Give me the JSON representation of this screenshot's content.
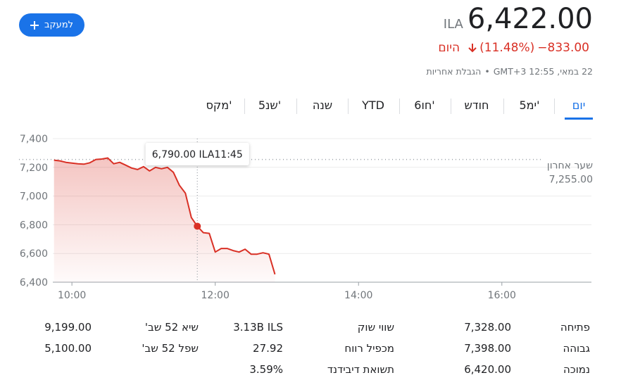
{
  "follow_button": "למעקב",
  "quote": {
    "currency": "ILA",
    "price": "6,422.00",
    "change": "−833.00",
    "change_pct": "(11.48%)",
    "period": "היום",
    "timestamp": "22 במאי, 12:55 GMT+3",
    "disclaimer": "הגבלת אחריות"
  },
  "tabs": [
    "יום",
    "5ימ'",
    "חודש",
    "6חו'",
    "YTD",
    "שנה",
    "5שנ'",
    "מקס'"
  ],
  "selected_tab": 0,
  "chart_data": {
    "type": "line",
    "x": [
      "09:45",
      "09:50",
      "09:55",
      "10:00",
      "10:05",
      "10:10",
      "10:15",
      "10:20",
      "10:25",
      "10:30",
      "10:35",
      "10:40",
      "10:45",
      "10:50",
      "10:55",
      "11:00",
      "11:05",
      "11:10",
      "11:15",
      "11:20",
      "11:25",
      "11:30",
      "11:35",
      "11:40",
      "11:45",
      "11:50",
      "11:55",
      "12:00",
      "12:05",
      "12:10",
      "12:15",
      "12:20",
      "12:25",
      "12:30",
      "12:35",
      "12:40",
      "12:45",
      "12:50"
    ],
    "values": [
      7250,
      7245,
      7235,
      7230,
      7225,
      7222,
      7232,
      7255,
      7258,
      7265,
      7225,
      7235,
      7215,
      7195,
      7185,
      7205,
      7175,
      7200,
      7190,
      7200,
      7165,
      7075,
      7020,
      6850,
      6790,
      6745,
      6740,
      6610,
      6635,
      6635,
      6620,
      6610,
      6630,
      6595,
      6595,
      6605,
      6595,
      6455
    ],
    "color": "#d93025",
    "xlim": [
      "09:44",
      "17:15"
    ],
    "xticks": [
      "10:00",
      "12:00",
      "14:00",
      "16:00"
    ],
    "ylim": [
      6400,
      7400
    ],
    "yticks": [
      {
        "value": 6400,
        "label": "6,400"
      },
      {
        "value": 6600,
        "label": "6,600"
      },
      {
        "value": 6800,
        "label": "6,800"
      },
      {
        "value": 7000,
        "label": "7,000"
      },
      {
        "value": 7200,
        "label": "7,200"
      },
      {
        "value": 7400,
        "label": "7,400"
      }
    ],
    "grid": true,
    "previous_close": {
      "label": "שער אחרון",
      "value": 7255,
      "value_label": "7,255.00"
    },
    "tooltip": {
      "x": "11:45",
      "value": 6790,
      "label": "6,790.00 ILA"
    }
  },
  "stats": [
    {
      "label": "פתיחה",
      "value": "7,328.00"
    },
    {
      "label": "גבוהה",
      "value": "7,398.00"
    },
    {
      "label": "נמוכה",
      "value": "6,420.00"
    },
    {
      "label": "שווי שוק",
      "value": "3.13B ILS"
    },
    {
      "label": "מכפיל רווח",
      "value": "27.92"
    },
    {
      "label": "תשואת דיבידנד",
      "value": "3.59%"
    },
    {
      "label": "שיא 52 שב'",
      "value": "9,199.00"
    },
    {
      "label": "שפל 52 שב'",
      "value": "5,100.00"
    }
  ]
}
